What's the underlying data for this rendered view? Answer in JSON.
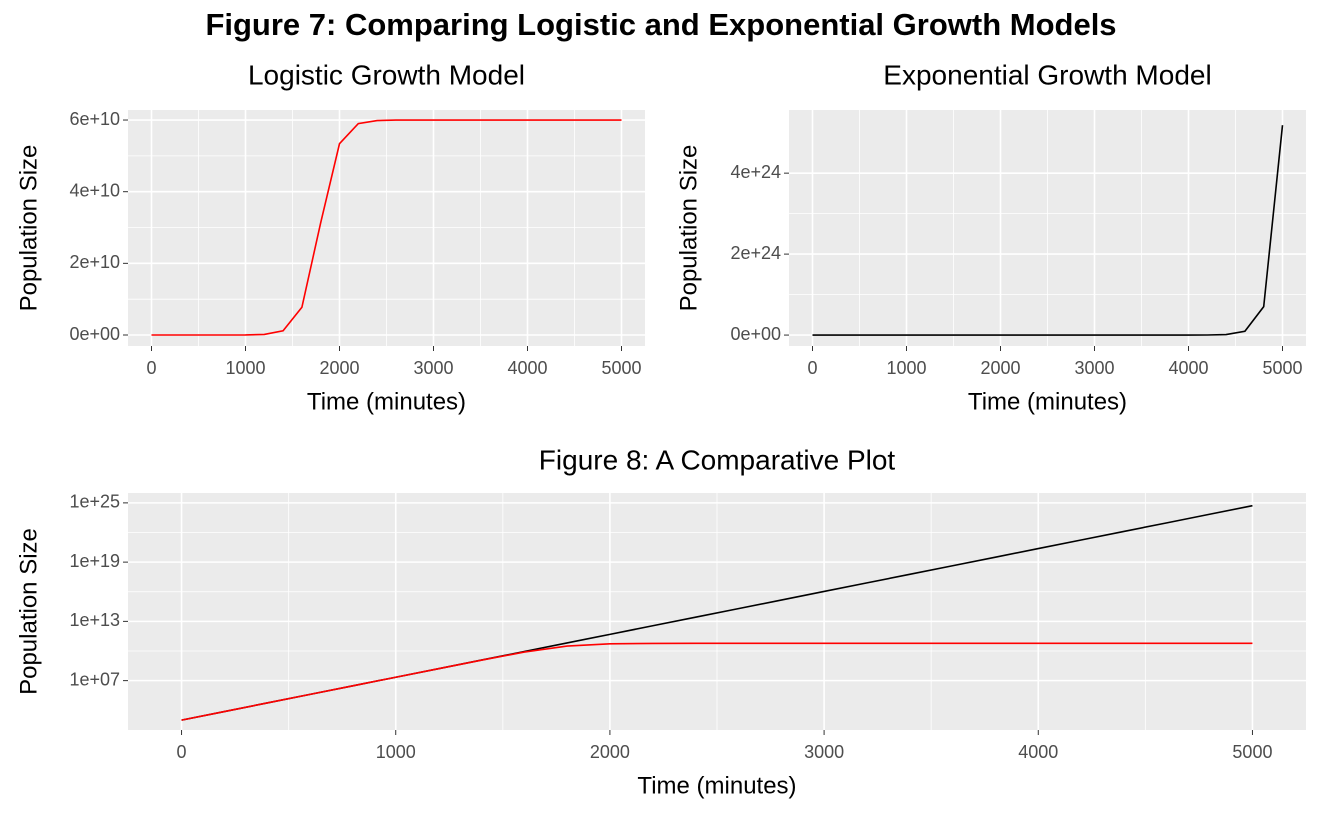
{
  "title": "Figure 7: Comparing Logistic and Exponential Growth Models",
  "chart_data": [
    {
      "type": "line",
      "title": "Logistic Growth Model",
      "xlabel": "Time (minutes)",
      "ylabel": "Population Size",
      "x": [
        0,
        200,
        400,
        600,
        800,
        1000,
        1200,
        1400,
        1600,
        1800,
        2000,
        2200,
        2400,
        2600,
        2800,
        3000,
        3200,
        3400,
        3600,
        3800,
        4000,
        4200,
        4400,
        4600,
        4800,
        5000
      ],
      "series": [
        {
          "color": "#ff0000",
          "values": [
            1000,
            7389,
            54598,
            403427,
            2980900,
            22018000,
            162310000,
            1179000000,
            7740000000,
            31350000000,
            53400000000,
            59010000000,
            59860000000,
            59980000000,
            60000000000,
            60000000000,
            60000000000,
            60000000000,
            60000000000,
            60000000000,
            60000000000,
            60000000000,
            60000000000,
            60000000000,
            60000000000,
            60000000000
          ]
        }
      ],
      "xlim": [
        -250,
        5250
      ],
      "xticks": [
        0,
        1000,
        2000,
        3000,
        4000,
        5000
      ],
      "ylim": [
        -3070000000,
        62800000000
      ],
      "yticks": [
        {
          "value": 0,
          "label": "0e+00"
        },
        {
          "value": 20000000000,
          "label": "2e+10"
        },
        {
          "value": 40000000000,
          "label": "4e+10"
        },
        {
          "value": 60000000000,
          "label": "6e+10"
        }
      ],
      "grid": true
    },
    {
      "type": "line",
      "title": "Exponential Growth Model",
      "xlabel": "Time (minutes)",
      "ylabel": "Population Size",
      "x": [
        0,
        200,
        400,
        600,
        800,
        1000,
        1200,
        1400,
        1600,
        1800,
        2000,
        2200,
        2400,
        2600,
        2800,
        3000,
        3200,
        3400,
        3600,
        3800,
        4000,
        4200,
        4400,
        4600,
        4800,
        5000
      ],
      "series": [
        {
          "color": "#000000",
          "values": [
            1000,
            7389,
            54598,
            403429,
            2981000,
            22026000,
            162755000,
            1202600000,
            8886000000,
            65660000000,
            485200000000,
            3585000000000.0,
            26490000000000.0,
            195700000000000.0,
            1446000000000000.0,
            1.0686e+16,
            7.896e+16,
            5.834e+17,
            4.311e+18,
            3.185e+19,
            2.354e+20,
            1.739e+21,
            1.285e+22,
            9.496e+22,
            7.017e+23,
            5.185e+24
          ]
        }
      ],
      "xlim": [
        -250,
        5250
      ],
      "xticks": [
        0,
        1000,
        2000,
        3000,
        4000,
        5000
      ],
      "ylim": [
        -2.7e+23,
        5.56e+24
      ],
      "yticks": [
        {
          "value": 0,
          "label": "0e+00"
        },
        {
          "value": 2e+24,
          "label": "2e+24"
        },
        {
          "value": 4e+24,
          "label": "4e+24"
        }
      ],
      "grid": true
    },
    {
      "type": "line",
      "title": "Figure 8: A Comparative Plot",
      "xlabel": "Time (minutes)",
      "ylabel": "Population Size",
      "x": [
        0,
        200,
        400,
        600,
        800,
        1000,
        1200,
        1400,
        1600,
        1800,
        2000,
        2200,
        2400,
        2600,
        2800,
        3000,
        3200,
        3400,
        3600,
        3800,
        4000,
        4200,
        4400,
        4600,
        4800,
        5000
      ],
      "series": [
        {
          "color": "#000000",
          "values": [
            1000,
            7389,
            54598,
            403429,
            2981000,
            22026000,
            162755000,
            1202600000,
            8886000000,
            65660000000,
            485200000000,
            3585000000000.0,
            26490000000000.0,
            195700000000000.0,
            1446000000000000.0,
            1.0686e+16,
            7.896e+16,
            5.834e+17,
            4.311e+18,
            3.185e+19,
            2.354e+20,
            1.739e+21,
            1.285e+22,
            9.496e+22,
            7.017e+23,
            5.185e+24
          ]
        },
        {
          "color": "#ff0000",
          "values": [
            1000,
            7389,
            54598,
            403427,
            2980900,
            22018000,
            162310000,
            1179000000,
            7740000000,
            31350000000,
            53400000000,
            59010000000,
            59860000000,
            59980000000,
            60000000000,
            60000000000,
            60000000000,
            60000000000,
            60000000000,
            60000000000,
            60000000000,
            60000000000,
            60000000000,
            60000000000,
            60000000000,
            60000000000
          ]
        }
      ],
      "xlim": [
        -250,
        5250
      ],
      "xticks": [
        0,
        1000,
        2000,
        3000,
        4000,
        5000
      ],
      "ylog": true,
      "ylim": [
        100,
        1e+26
      ],
      "yticks": [
        {
          "value": 10000000.0,
          "label": "1e+07"
        },
        {
          "value": 10000000000000.0,
          "label": "1e+13"
        },
        {
          "value": 1e+19,
          "label": "1e+19"
        },
        {
          "value": 1e+25,
          "label": "1e+25"
        }
      ],
      "grid": true
    }
  ]
}
